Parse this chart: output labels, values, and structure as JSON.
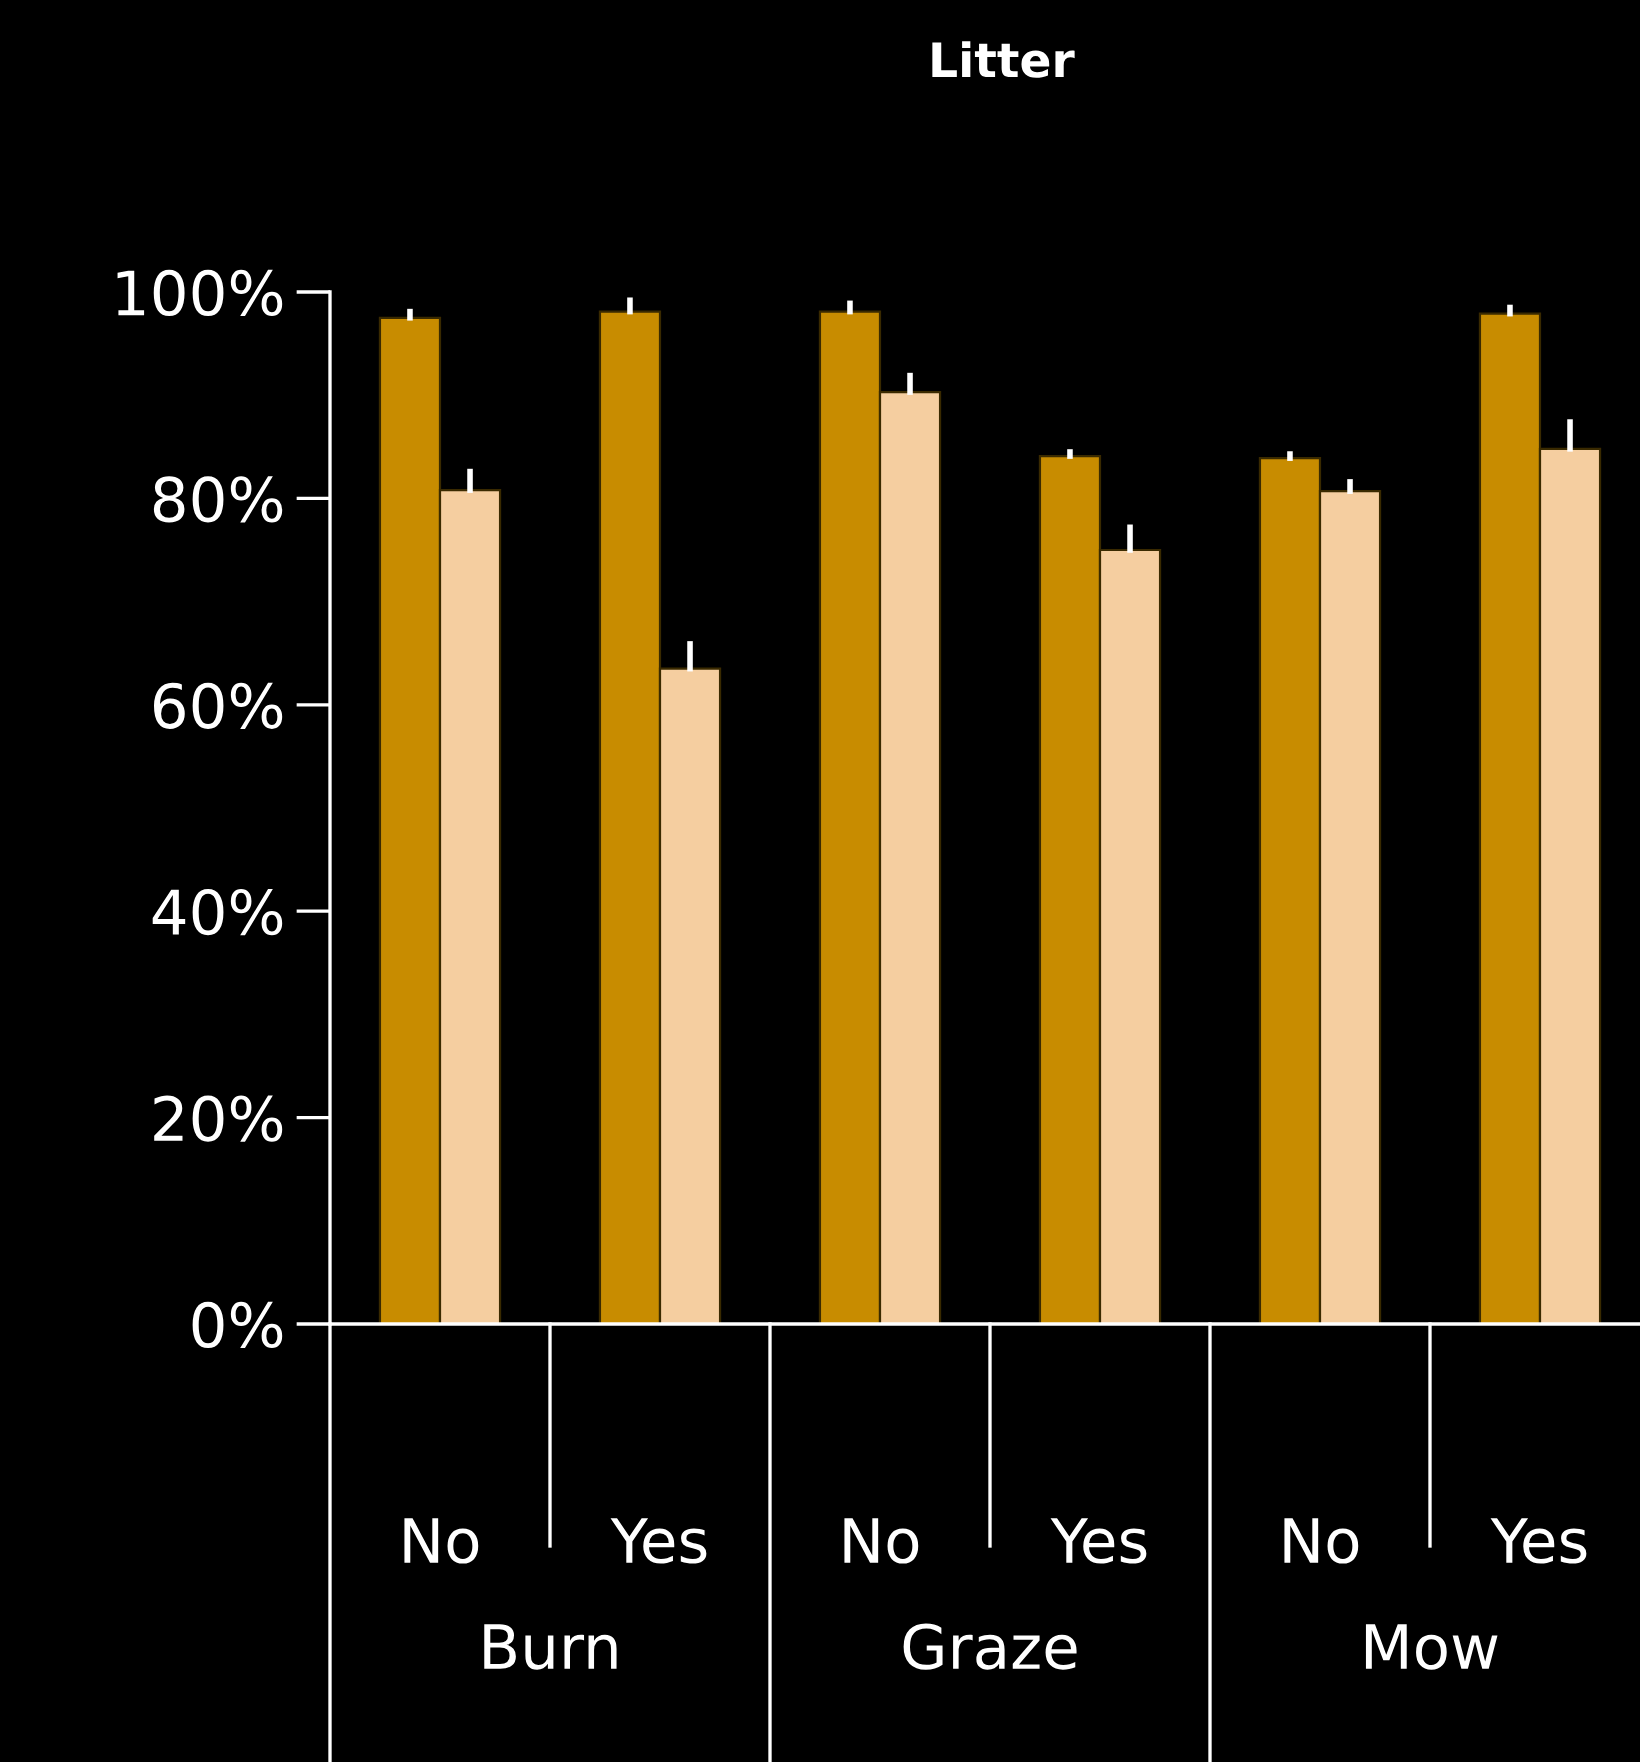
{
  "chart_data": {
    "type": "bar",
    "title": "Litter",
    "categories": [
      "No",
      "Yes",
      "No",
      "Yes",
      "No",
      "Yes"
    ],
    "series": [
      {
        "color": "#c88c00",
        "values": [
          97.5,
          98.1,
          98.1,
          84.1,
          83.9,
          97.9
        ],
        "errors": [
          [
            97.5,
            98.1
          ],
          [
            98.1,
            99.2
          ],
          [
            98.1,
            98.9
          ],
          [
            84.1,
            84.5
          ],
          [
            83.9,
            84.3
          ],
          [
            97.9,
            98.5
          ]
        ]
      },
      {
        "color": "#f5cea0",
        "values": [
          80.8,
          63.5,
          90.3,
          75.0,
          80.7,
          84.8
        ],
        "errors": [
          [
            80.8,
            82.6
          ],
          [
            63.5,
            65.9
          ],
          [
            90.3,
            91.9
          ],
          [
            75.0,
            77.2
          ],
          [
            80.7,
            81.6
          ],
          [
            84.8,
            87.4
          ]
        ]
      }
    ],
    "ylim": [
      0,
      100
    ],
    "yticks": [
      {
        "value": 0,
        "label": "0%"
      },
      {
        "value": 20,
        "label": "20%"
      },
      {
        "value": 40,
        "label": "40%"
      },
      {
        "value": 60,
        "label": "60%"
      },
      {
        "value": 80,
        "label": "80%"
      },
      {
        "value": 100,
        "label": "100%"
      }
    ],
    "annotations": [
      "Burn",
      "Graze",
      "Mow"
    ],
    "grid": false,
    "legend": false
  }
}
